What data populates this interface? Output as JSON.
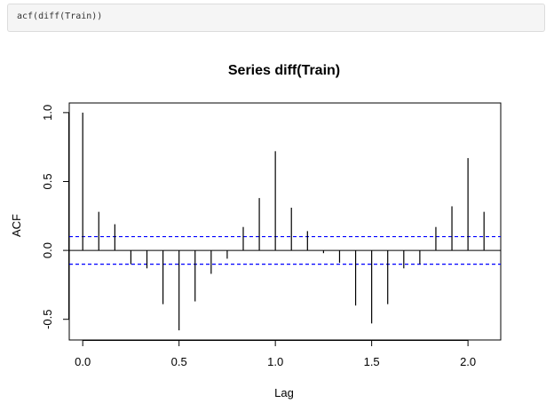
{
  "code": {
    "text": "acf(diff(Train))"
  },
  "chart_data": {
    "type": "bar",
    "title": "Series  diff(Train)",
    "xlabel": "Lag",
    "ylabel": "ACF",
    "xlim": [
      -0.07,
      2.17
    ],
    "ylim": [
      -0.65,
      1.07
    ],
    "x_ticks": [
      "0.0",
      "0.5",
      "1.0",
      "1.5",
      "2.0"
    ],
    "x_tick_values": [
      0,
      0.5,
      1,
      1.5,
      2
    ],
    "y_ticks": [
      "-0.5",
      "0.0",
      "0.5",
      "1.0"
    ],
    "y_tick_values": [
      -0.5,
      0,
      0.5,
      1
    ],
    "confidence_bound": 0.1,
    "colors": {
      "bars": "#000000",
      "ci": "#0000ff"
    },
    "lags": [
      0,
      0.0833,
      0.1667,
      0.25,
      0.3333,
      0.4167,
      0.5,
      0.5833,
      0.6667,
      0.75,
      0.8333,
      0.9167,
      1.0,
      1.0833,
      1.1667,
      1.25,
      1.3333,
      1.4167,
      1.5,
      1.5833,
      1.6667,
      1.75,
      1.8333,
      1.9167,
      2.0,
      2.0833
    ],
    "values": [
      1.0,
      0.28,
      0.19,
      -0.1,
      -0.13,
      -0.39,
      -0.58,
      -0.37,
      -0.17,
      -0.06,
      0.17,
      0.38,
      0.72,
      0.31,
      0.14,
      -0.02,
      -0.09,
      -0.4,
      -0.53,
      -0.39,
      -0.13,
      -0.1,
      0.17,
      0.32,
      0.67,
      0.28
    ]
  }
}
